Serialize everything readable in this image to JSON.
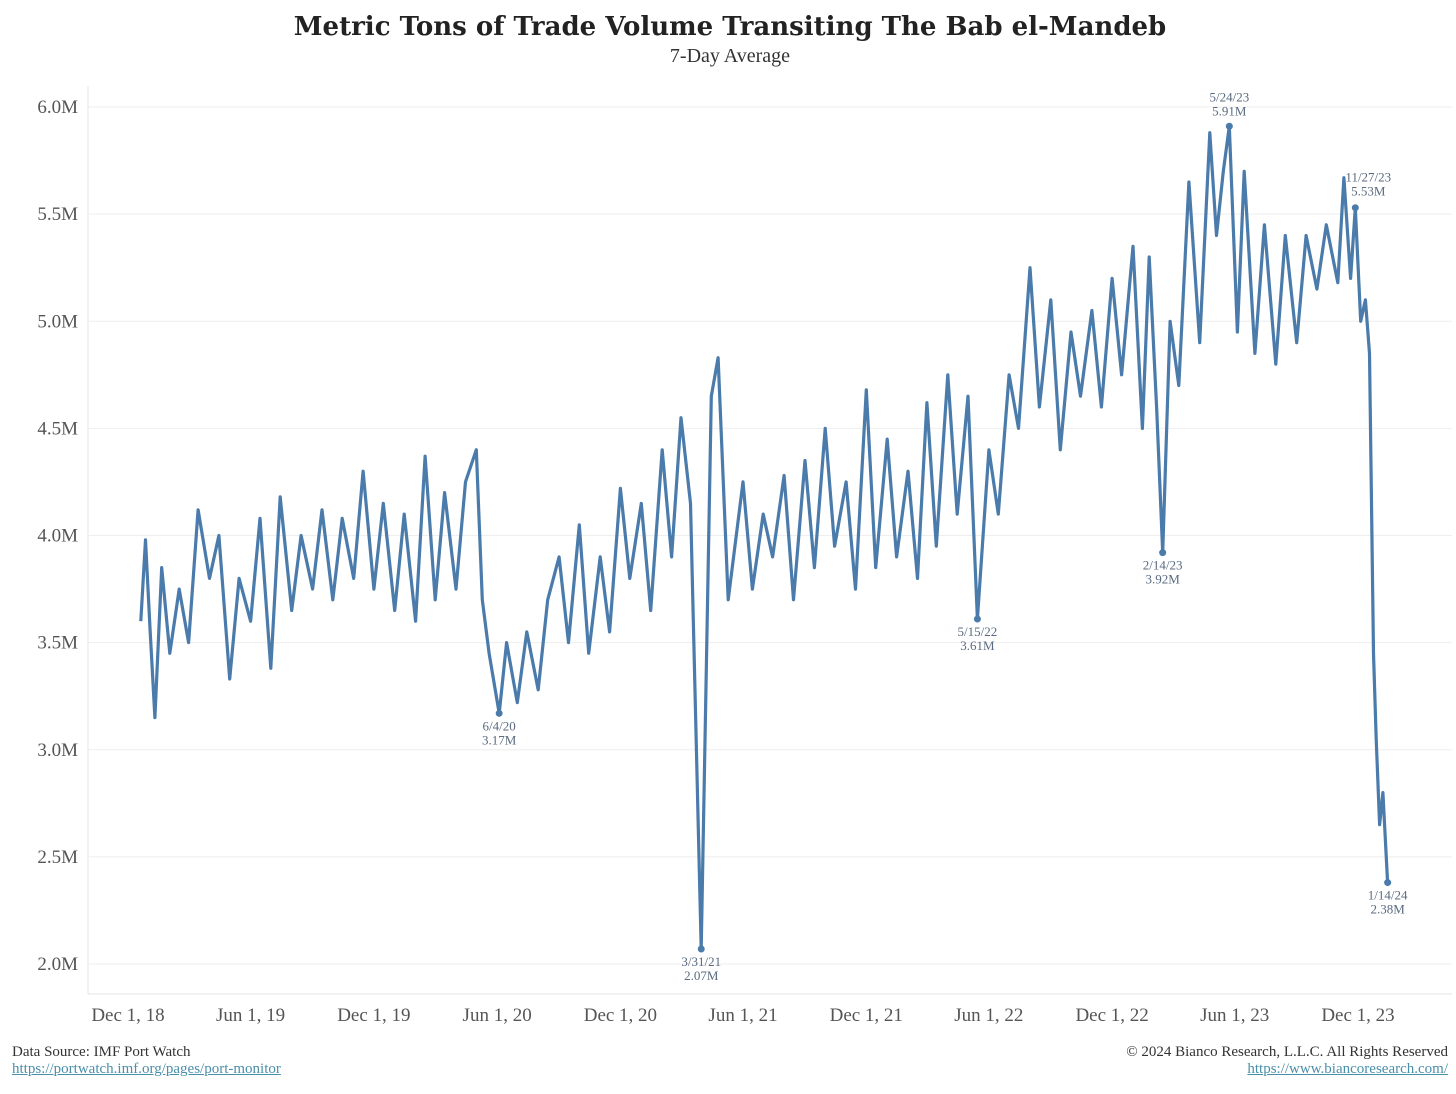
{
  "chart_data": {
    "type": "line",
    "title": "Metric Tons of Trade Volume Transiting The Bab el-Mandeb",
    "subtitle": "7-Day Average",
    "xlabel": "",
    "ylabel": "",
    "ylim": [
      2.0,
      6.0
    ],
    "xlim": [
      "2018-12-01",
      "2024-01-31"
    ],
    "grid": true,
    "line_color": "#4a7bab",
    "y_ticks": [
      "2.0M",
      "2.5M",
      "3.0M",
      "3.5M",
      "4.0M",
      "4.5M",
      "5.0M",
      "5.5M",
      "6.0M"
    ],
    "y_tick_values": [
      2.0,
      2.5,
      3.0,
      3.5,
      4.0,
      4.5,
      5.0,
      5.5,
      6.0
    ],
    "x_ticks": [
      {
        "date": "2018-12-01",
        "label": "Dec 1, 18"
      },
      {
        "date": "2019-06-01",
        "label": "Jun 1, 19"
      },
      {
        "date": "2019-12-01",
        "label": "Dec 1, 19"
      },
      {
        "date": "2020-06-01",
        "label": "Jun 1, 20"
      },
      {
        "date": "2020-12-01",
        "label": "Dec 1, 20"
      },
      {
        "date": "2021-06-01",
        "label": "Jun 1, 21"
      },
      {
        "date": "2021-12-01",
        "label": "Dec 1, 21"
      },
      {
        "date": "2022-06-01",
        "label": "Jun 1, 22"
      },
      {
        "date": "2022-12-01",
        "label": "Dec 1, 22"
      },
      {
        "date": "2023-06-01",
        "label": "Jun 1, 23"
      },
      {
        "date": "2023-12-01",
        "label": "Dec 1, 23"
      }
    ],
    "series": [
      {
        "unit": "M",
        "points": [
          [
            "2018-12-20",
            3.6
          ],
          [
            "2018-12-27",
            3.98
          ],
          [
            "2019-01-03",
            3.55
          ],
          [
            "2019-01-10",
            3.15
          ],
          [
            "2019-01-20",
            3.85
          ],
          [
            "2019-02-01",
            3.45
          ],
          [
            "2019-02-15",
            3.75
          ],
          [
            "2019-03-01",
            3.5
          ],
          [
            "2019-03-15",
            4.12
          ],
          [
            "2019-04-01",
            3.8
          ],
          [
            "2019-04-15",
            4.0
          ],
          [
            "2019-05-01",
            3.33
          ],
          [
            "2019-05-15",
            3.8
          ],
          [
            "2019-06-01",
            3.6
          ],
          [
            "2019-06-15",
            4.08
          ],
          [
            "2019-07-01",
            3.38
          ],
          [
            "2019-07-15",
            4.18
          ],
          [
            "2019-08-01",
            3.65
          ],
          [
            "2019-08-15",
            4.0
          ],
          [
            "2019-09-01",
            3.75
          ],
          [
            "2019-09-15",
            4.12
          ],
          [
            "2019-10-01",
            3.7
          ],
          [
            "2019-10-15",
            4.08
          ],
          [
            "2019-11-01",
            3.8
          ],
          [
            "2019-11-15",
            4.3
          ],
          [
            "2019-12-01",
            3.75
          ],
          [
            "2019-12-15",
            4.15
          ],
          [
            "2020-01-01",
            3.65
          ],
          [
            "2020-01-15",
            4.1
          ],
          [
            "2020-02-01",
            3.6
          ],
          [
            "2020-02-15",
            4.37
          ],
          [
            "2020-03-01",
            3.7
          ],
          [
            "2020-03-15",
            4.2
          ],
          [
            "2020-04-01",
            3.75
          ],
          [
            "2020-04-15",
            4.25
          ],
          [
            "2020-05-01",
            4.4
          ],
          [
            "2020-05-10",
            3.7
          ],
          [
            "2020-05-20",
            3.45
          ],
          [
            "2020-06-04",
            3.17
          ],
          [
            "2020-06-15",
            3.5
          ],
          [
            "2020-07-01",
            3.22
          ],
          [
            "2020-07-15",
            3.55
          ],
          [
            "2020-08-01",
            3.28
          ],
          [
            "2020-08-15",
            3.7
          ],
          [
            "2020-09-01",
            3.9
          ],
          [
            "2020-09-15",
            3.5
          ],
          [
            "2020-10-01",
            4.05
          ],
          [
            "2020-10-15",
            3.45
          ],
          [
            "2020-11-01",
            3.9
          ],
          [
            "2020-11-15",
            3.55
          ],
          [
            "2020-12-01",
            4.22
          ],
          [
            "2020-12-15",
            3.8
          ],
          [
            "2021-01-01",
            4.15
          ],
          [
            "2021-01-15",
            3.65
          ],
          [
            "2021-02-01",
            4.4
          ],
          [
            "2021-02-15",
            3.9
          ],
          [
            "2021-03-01",
            4.55
          ],
          [
            "2021-03-15",
            4.15
          ],
          [
            "2021-03-31",
            2.07
          ],
          [
            "2021-04-15",
            4.65
          ],
          [
            "2021-04-25",
            4.83
          ],
          [
            "2021-05-10",
            3.7
          ],
          [
            "2021-06-01",
            4.25
          ],
          [
            "2021-06-15",
            3.75
          ],
          [
            "2021-07-01",
            4.1
          ],
          [
            "2021-07-15",
            3.9
          ],
          [
            "2021-08-01",
            4.28
          ],
          [
            "2021-08-15",
            3.7
          ],
          [
            "2021-09-01",
            4.35
          ],
          [
            "2021-09-15",
            3.85
          ],
          [
            "2021-10-01",
            4.5
          ],
          [
            "2021-10-15",
            3.95
          ],
          [
            "2021-11-01",
            4.25
          ],
          [
            "2021-11-15",
            3.75
          ],
          [
            "2021-12-01",
            4.68
          ],
          [
            "2021-12-15",
            3.85
          ],
          [
            "2022-01-01",
            4.45
          ],
          [
            "2022-01-15",
            3.9
          ],
          [
            "2022-02-01",
            4.3
          ],
          [
            "2022-02-15",
            3.8
          ],
          [
            "2022-03-01",
            4.62
          ],
          [
            "2022-03-15",
            3.95
          ],
          [
            "2022-04-01",
            4.75
          ],
          [
            "2022-04-15",
            4.1
          ],
          [
            "2022-05-01",
            4.65
          ],
          [
            "2022-05-15",
            3.61
          ],
          [
            "2022-06-01",
            4.4
          ],
          [
            "2022-06-15",
            4.1
          ],
          [
            "2022-07-01",
            4.75
          ],
          [
            "2022-07-15",
            4.5
          ],
          [
            "2022-08-01",
            5.25
          ],
          [
            "2022-08-15",
            4.6
          ],
          [
            "2022-09-01",
            5.1
          ],
          [
            "2022-09-15",
            4.4
          ],
          [
            "2022-10-01",
            4.95
          ],
          [
            "2022-10-15",
            4.65
          ],
          [
            "2022-11-01",
            5.05
          ],
          [
            "2022-11-15",
            4.6
          ],
          [
            "2022-12-01",
            5.2
          ],
          [
            "2022-12-15",
            4.75
          ],
          [
            "2023-01-01",
            5.35
          ],
          [
            "2023-01-15",
            4.5
          ],
          [
            "2023-01-25",
            5.3
          ],
          [
            "2023-02-05",
            4.6
          ],
          [
            "2023-02-14",
            3.92
          ],
          [
            "2023-02-25",
            5.0
          ],
          [
            "2023-03-10",
            4.7
          ],
          [
            "2023-03-25",
            5.65
          ],
          [
            "2023-04-10",
            4.9
          ],
          [
            "2023-04-25",
            5.88
          ],
          [
            "2023-05-05",
            5.4
          ],
          [
            "2023-05-15",
            5.7
          ],
          [
            "2023-05-24",
            5.91
          ],
          [
            "2023-06-05",
            4.95
          ],
          [
            "2023-06-15",
            5.7
          ],
          [
            "2023-07-01",
            4.85
          ],
          [
            "2023-07-15",
            5.45
          ],
          [
            "2023-08-01",
            4.8
          ],
          [
            "2023-08-15",
            5.4
          ],
          [
            "2023-09-01",
            4.9
          ],
          [
            "2023-09-15",
            5.4
          ],
          [
            "2023-10-01",
            5.15
          ],
          [
            "2023-10-15",
            5.45
          ],
          [
            "2023-11-01",
            5.18
          ],
          [
            "2023-11-10",
            5.67
          ],
          [
            "2023-11-20",
            5.2
          ],
          [
            "2023-11-27",
            5.53
          ],
          [
            "2023-12-05",
            5.0
          ],
          [
            "2023-12-12",
            5.1
          ],
          [
            "2023-12-18",
            4.85
          ],
          [
            "2023-12-24",
            3.45
          ],
          [
            "2023-12-28",
            3.05
          ],
          [
            "2024-01-02",
            2.65
          ],
          [
            "2024-01-07",
            2.8
          ],
          [
            "2024-01-14",
            2.38
          ]
        ]
      }
    ],
    "annotations": [
      {
        "date": "2020-06-04",
        "value": 3.17,
        "date_label": "6/4/20",
        "value_label": "3.17M",
        "position": "below"
      },
      {
        "date": "2021-03-31",
        "value": 2.07,
        "date_label": "3/31/21",
        "value_label": "2.07M",
        "position": "below"
      },
      {
        "date": "2022-05-15",
        "value": 3.61,
        "date_label": "5/15/22",
        "value_label": "3.61M",
        "position": "below"
      },
      {
        "date": "2023-02-14",
        "value": 3.92,
        "date_label": "2/14/23",
        "value_label": "3.92M",
        "position": "below"
      },
      {
        "date": "2023-05-24",
        "value": 5.91,
        "date_label": "5/24/23",
        "value_label": "5.91M",
        "position": "above"
      },
      {
        "date": "2023-11-27",
        "value": 5.53,
        "date_label": "11/27/23",
        "value_label": "5.53M",
        "position": "above-right"
      },
      {
        "date": "2024-01-14",
        "value": 2.38,
        "date_label": "1/14/24",
        "value_label": "2.38M",
        "position": "below"
      }
    ]
  },
  "footer": {
    "source": "Data Source: IMF Port Watch",
    "source_url": "https://portwatch.imf.org/pages/port-monitor",
    "copyright": "© 2024 Bianco Research, L.L.C. All Rights Reserved",
    "site_url": "https://www.biancoresearch.com/"
  }
}
